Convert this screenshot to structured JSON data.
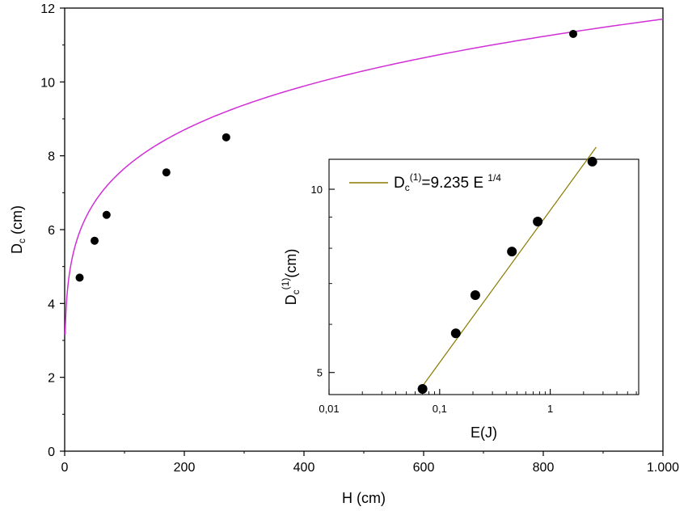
{
  "chart_data": [
    {
      "type": "scatter",
      "title": "",
      "xlabel": "H (cm)",
      "ylabel": "D",
      "ylabel_sub": "c",
      "ylabel_unit": " (cm)",
      "xlim": [
        0,
        1000
      ],
      "ylim": [
        0,
        12
      ],
      "x_ticks": [
        0,
        200,
        400,
        600,
        800,
        1000
      ],
      "x_tick_labels": [
        "0",
        "200",
        "400",
        "600",
        "800",
        "1.000"
      ],
      "y_ticks": [
        0,
        2,
        4,
        6,
        8,
        10,
        12
      ],
      "y_tick_labels": [
        "0",
        "2",
        "4",
        "6",
        "8",
        "10",
        "12"
      ],
      "grid": false,
      "series": [
        {
          "type": "scatter",
          "x": [
            25,
            50,
            70,
            170,
            270,
            850
          ],
          "y": [
            4.7,
            5.7,
            6.4,
            7.55,
            8.5,
            11.3
          ],
          "color": "#000000"
        },
        {
          "type": "line",
          "fit": {
            "a": 3.283,
            "b": 0.184,
            "x_from": 1,
            "x_to": 1000
          },
          "color": "#d12fd6"
        }
      ]
    },
    {
      "type": "scatter",
      "title": "",
      "xlabel": "E(J)",
      "ylabel": "D",
      "ylabel_sub": "c",
      "ylabel_sup": "(1)",
      "ylabel_unit": "(cm)",
      "x_scale": "log",
      "y_scale": "log",
      "xlim": [
        0.01,
        6.3
      ],
      "ylim": [
        4.6,
        11.2
      ],
      "x_ticks": [
        0.01,
        0.1,
        1
      ],
      "x_tick_labels": [
        "0,01",
        "0,1",
        "1"
      ],
      "y_ticks": [
        5,
        10
      ],
      "y_tick_labels": [
        "5",
        "10"
      ],
      "grid": false,
      "legend_position": "top-left",
      "legend_text": {
        "prefix": "D",
        "sub": "c",
        "sup": "(1)",
        "mid": "=9.235 E ",
        "exp": "1/4"
      },
      "series": [
        {
          "type": "scatter",
          "x": [
            0.07,
            0.14,
            0.21,
            0.45,
            0.77,
            2.4
          ],
          "y": [
            4.7,
            5.8,
            6.7,
            7.9,
            8.85,
            11.1
          ],
          "color": "#000000"
        },
        {
          "type": "line",
          "fit": {
            "a": 9.235,
            "b": 0.25,
            "x_from": 0.068,
            "x_to": 2.6
          },
          "color": "#8a7a00"
        }
      ]
    }
  ]
}
